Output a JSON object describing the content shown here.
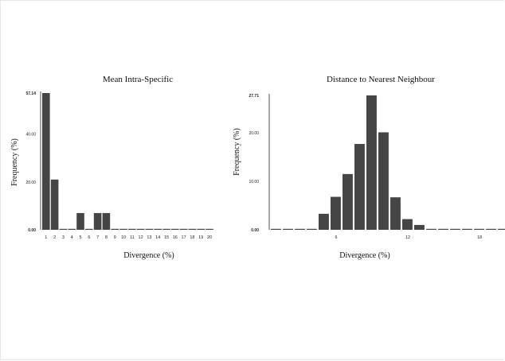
{
  "chart_data": [
    {
      "type": "bar",
      "title": "Mean Intra-Specific",
      "xlabel": "Divergence (%)",
      "ylabel": "Frequency (%)",
      "categories": [
        "1",
        "2",
        "3",
        "4",
        "5",
        "6",
        "7",
        "8",
        "9",
        "10",
        "11",
        "12",
        "13",
        "14",
        "15",
        "16",
        "17",
        "18",
        "19",
        "20"
      ],
      "values": [
        57.14,
        21.0,
        0,
        0,
        7.0,
        0,
        7.0,
        7.0,
        0,
        0,
        0,
        0,
        0,
        0,
        0,
        0,
        0,
        0,
        0,
        0
      ],
      "ylim": [
        0,
        57.14
      ],
      "yticks": [
        "0.00",
        "20.00",
        "40.00",
        "57.14"
      ],
      "grid": false
    },
    {
      "type": "bar",
      "title": "Distance to Nearest Neighbour",
      "xlabel": "Divergence (%)",
      "ylabel": "Frequency (%)",
      "x": [
        1,
        2,
        3,
        4,
        5,
        6,
        7,
        8,
        9,
        10,
        11,
        12,
        13,
        14,
        15,
        16,
        17,
        18,
        19,
        20
      ],
      "values": [
        0.05,
        0.05,
        0.05,
        0.05,
        3.3,
        6.8,
        11.5,
        17.7,
        27.71,
        20.1,
        6.7,
        2.2,
        1.0,
        0.05,
        0.05,
        0.05,
        0.05,
        0.05,
        0.05,
        0.05
      ],
      "xticks": [
        "6",
        "12",
        "18"
      ],
      "ylim": [
        0,
        27.71
      ],
      "yticks": [
        "0.00",
        "10.00",
        "20.00",
        "27.71"
      ],
      "grid": false
    }
  ]
}
